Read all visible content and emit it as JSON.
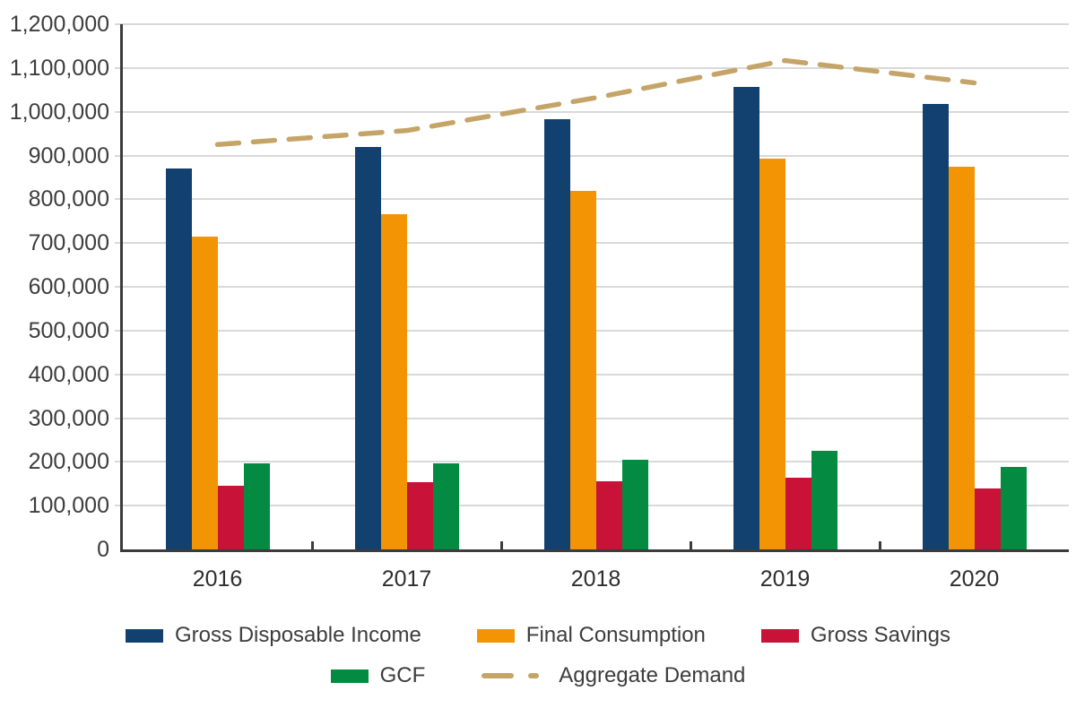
{
  "chart_data": {
    "type": "bar",
    "subtype": "grouped-bars-with-dashed-line",
    "title": "",
    "xlabel": "",
    "ylabel": "",
    "categories": [
      "2016",
      "2017",
      "2018",
      "2019",
      "2020"
    ],
    "series": [
      {
        "name": "Gross Disposable Income",
        "type": "bar",
        "color": "#12416F",
        "values": [
          870000,
          920000,
          983000,
          1057000,
          1018000
        ]
      },
      {
        "name": "Final Consumption",
        "type": "bar",
        "color": "#F39405",
        "values": [
          715000,
          765000,
          820000,
          893000,
          875000
        ]
      },
      {
        "name": "Gross Savings",
        "type": "bar",
        "color": "#C81238",
        "values": [
          146000,
          154000,
          156000,
          164000,
          140000
        ]
      },
      {
        "name": "GCF",
        "type": "bar",
        "color": "#048B41",
        "values": [
          196000,
          197000,
          205000,
          225000,
          188000
        ]
      },
      {
        "name": "Aggregate Demand",
        "type": "line",
        "dashed": true,
        "color": "#C5A468",
        "values": [
          925000,
          957000,
          1032000,
          1117000,
          1066000
        ]
      }
    ],
    "ylim": [
      0,
      1200000
    ],
    "ytick_step": 100000,
    "ytick_labels": [
      "0",
      "100,000",
      "200,000",
      "300,000",
      "400,000",
      "500,000",
      "600,000",
      "700,000",
      "800,000",
      "900,000",
      "1,000,000",
      "1,100,000",
      "1,200,000"
    ],
    "grid": "horizontal",
    "grid_color": "#D9D9D9",
    "axis_color": "#3C3C3C",
    "text_color": "#3D3D3D",
    "legend_position": "bottom",
    "legend_rows": [
      [
        "Gross Disposable Income",
        "Final Consumption",
        "Gross Savings"
      ],
      [
        "GCF",
        "Aggregate Demand"
      ]
    ]
  }
}
